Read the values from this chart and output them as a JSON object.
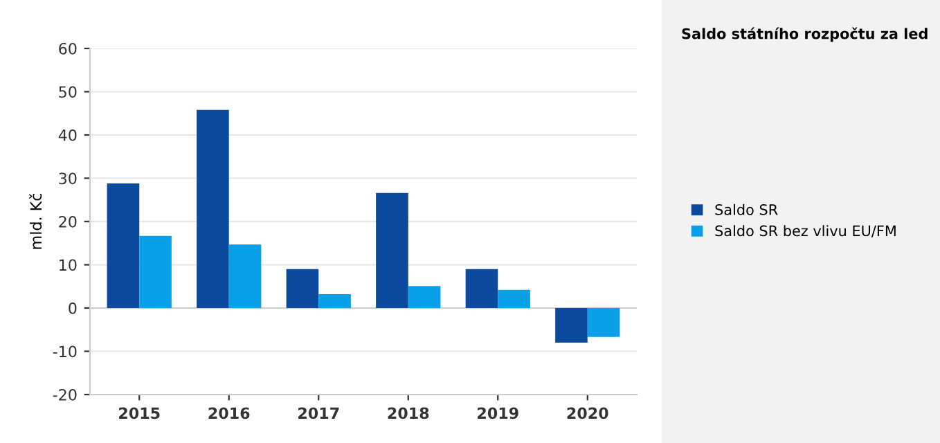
{
  "chart_data": {
    "type": "bar",
    "title": "Saldo státního rozpočtu za led",
    "ylabel": "mld. Kč",
    "categories": [
      "2015",
      "2016",
      "2017",
      "2018",
      "2019",
      "2020"
    ],
    "series": [
      {
        "name": "Saldo SR",
        "color": "#0b4a9c",
        "values": [
          28.8,
          45.8,
          9.0,
          26.6,
          9.0,
          -8.0
        ]
      },
      {
        "name": "Saldo SR bez vlivu EU/FM",
        "color": "#0aa0e8",
        "values": [
          16.7,
          14.7,
          3.2,
          5.1,
          4.2,
          -6.7
        ]
      }
    ],
    "ylim": [
      -20,
      60
    ],
    "yticks": [
      -20,
      -10,
      0,
      10,
      20,
      30,
      40,
      50,
      60
    ],
    "grid": "y",
    "legend": "right"
  }
}
